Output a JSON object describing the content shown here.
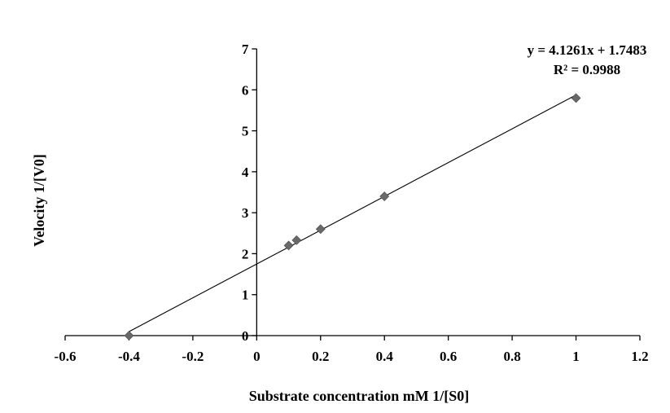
{
  "chart_data": {
    "type": "scatter",
    "title": "",
    "xlabel": "Substrate concentration mM 1/[S0]",
    "ylabel": "Velocity 1/[V0]",
    "xlim": [
      -0.6,
      1.2
    ],
    "ylim": [
      0,
      7
    ],
    "x_ticks": [
      -0.6,
      -0.4,
      -0.2,
      0,
      0.2,
      0.4,
      0.6,
      0.8,
      1,
      1.2
    ],
    "x_tick_labels": [
      "-0.6",
      "-0.4",
      "-0.2",
      "0",
      "0.2",
      "0.4",
      "0.6",
      "0.8",
      "1",
      "1.2"
    ],
    "y_ticks": [
      0,
      1,
      2,
      3,
      4,
      5,
      6,
      7
    ],
    "y_tick_labels": [
      "0",
      "1",
      "2",
      "3",
      "4",
      "5",
      "6",
      "7"
    ],
    "grid": false,
    "legend": "none",
    "marker_color": "#696969",
    "series": [
      {
        "points": [
          {
            "x": -0.4,
            "y": 0.0
          },
          {
            "x": 0.1,
            "y": 2.2
          },
          {
            "x": 0.125,
            "y": 2.33
          },
          {
            "x": 0.2,
            "y": 2.6
          },
          {
            "x": 0.4,
            "y": 3.4
          },
          {
            "x": 1.0,
            "y": 5.8
          }
        ]
      }
    ],
    "trendline": {
      "slope": 4.1261,
      "intercept": 1.7483,
      "x_from": -0.4,
      "x_to": 1.0,
      "equation": "y = 4.1261x + 1.7483",
      "r_squared": "R² = 0.9988"
    }
  }
}
